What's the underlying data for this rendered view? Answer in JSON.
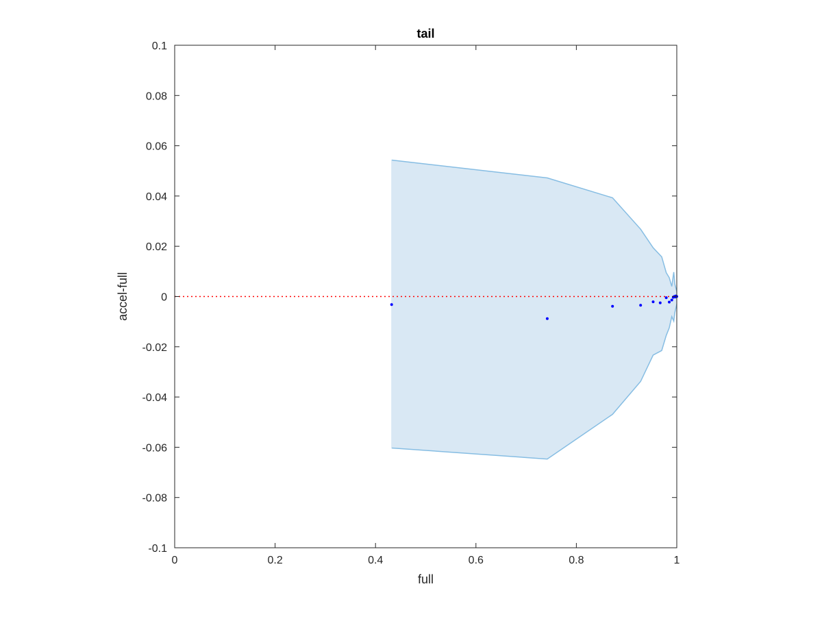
{
  "chart_data": {
    "type": "scatter",
    "title": "tail",
    "xlabel": "full",
    "ylabel": "accel-full",
    "xlim": [
      0,
      1
    ],
    "ylim": [
      -0.1,
      0.1
    ],
    "xticks": [
      0,
      0.2,
      0.4,
      0.6,
      0.8,
      1
    ],
    "xtick_labels": [
      "0",
      "0.2",
      "0.4",
      "0.6",
      "0.8",
      "1"
    ],
    "yticks": [
      0.1,
      0.08,
      0.06,
      0.04,
      0.02,
      0,
      -0.02,
      -0.04,
      -0.06,
      -0.08,
      -0.1
    ],
    "ytick_labels": [
      "0.1",
      "0.08",
      "0.06",
      "0.04",
      "0.02",
      "0",
      "-0.02",
      "-0.04",
      "-0.06",
      "-0.08",
      "-0.1"
    ],
    "grid": false,
    "reference_line": {
      "y": 0,
      "style": "dotted",
      "color": "#ff0000"
    },
    "band": {
      "fill": "#d9e8f4",
      "edge": "#86bde3",
      "upper": [
        [
          0.432,
          0.0543
        ],
        [
          0.742,
          0.0472
        ],
        [
          0.872,
          0.0393
        ],
        [
          0.928,
          0.0268
        ],
        [
          0.953,
          0.0194
        ],
        [
          0.97,
          0.0158
        ],
        [
          0.979,
          0.0095
        ],
        [
          0.985,
          0.0075
        ],
        [
          0.99,
          0.004
        ],
        [
          0.994,
          0.0097
        ],
        [
          0.996,
          0.005
        ],
        [
          1.0,
          0.002
        ]
      ],
      "lower": [
        [
          0.432,
          -0.0603
        ],
        [
          0.742,
          -0.0647
        ],
        [
          0.872,
          -0.0469
        ],
        [
          0.928,
          -0.0338
        ],
        [
          0.953,
          -0.0233
        ],
        [
          0.97,
          -0.0215
        ],
        [
          0.979,
          -0.0155
        ],
        [
          0.985,
          -0.0125
        ],
        [
          0.99,
          -0.008
        ],
        [
          0.994,
          -0.0098
        ],
        [
          0.996,
          -0.0065
        ],
        [
          1.0,
          -0.003
        ]
      ]
    },
    "points_color": "#0000ff",
    "points": [
      [
        0.432,
        -0.0032
      ],
      [
        0.742,
        -0.0088
      ],
      [
        0.872,
        -0.0039
      ],
      [
        0.928,
        -0.0035
      ],
      [
        0.953,
        -0.0021
      ],
      [
        0.967,
        -0.0025
      ],
      [
        0.979,
        -0.0005
      ],
      [
        0.985,
        -0.0022
      ],
      [
        0.99,
        -0.0014
      ],
      [
        0.993,
        -0.0003
      ],
      [
        0.995,
        0.0
      ],
      [
        0.997,
        -0.0002
      ],
      [
        0.998,
        0.0002
      ],
      [
        0.999,
        0.0001
      ],
      [
        1.0,
        0.0
      ]
    ]
  }
}
